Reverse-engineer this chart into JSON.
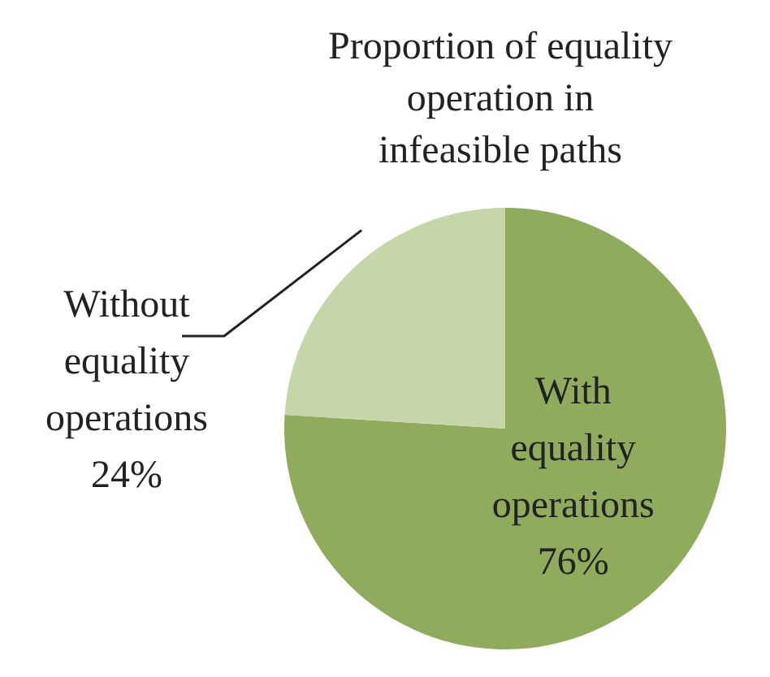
{
  "chart_data": {
    "type": "pie",
    "title": "Proportion of equality operation in infeasible paths",
    "categories": [
      "With equality operations",
      "Without equality operations"
    ],
    "values": [
      76,
      24
    ],
    "colors": [
      "#8fab5c",
      "#c5d6a9"
    ],
    "value_labels": [
      "76%",
      "24%"
    ]
  }
}
